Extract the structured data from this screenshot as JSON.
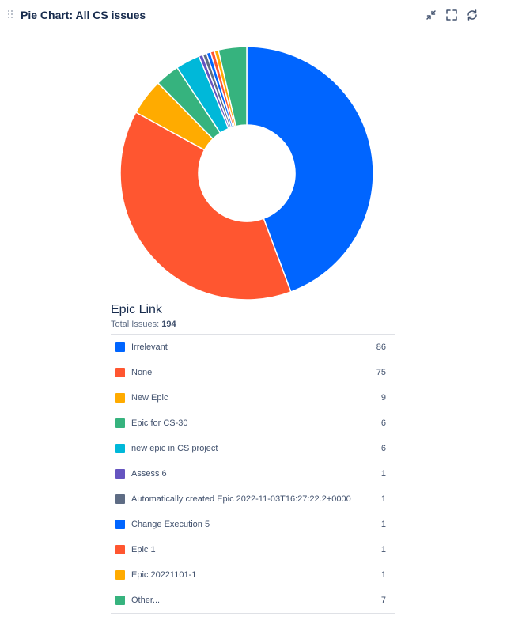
{
  "gadget": {
    "title": "Pie Chart: All CS issues",
    "icons": [
      "minimize-icon",
      "fullscreen-icon",
      "refresh-icon"
    ]
  },
  "chart_data": {
    "type": "pie",
    "style": "donut",
    "legend_title": "Epic Link",
    "total_label": "Total Issues:",
    "total": 194,
    "slices": [
      {
        "label": "Irrelevant",
        "value": 86,
        "color": "#0065ff"
      },
      {
        "label": "None",
        "value": 75,
        "color": "#ff5630"
      },
      {
        "label": "New Epic",
        "value": 9,
        "color": "#ffab00"
      },
      {
        "label": "Epic for CS-30",
        "value": 6,
        "color": "#36b37e"
      },
      {
        "label": "new epic in CS project",
        "value": 6,
        "color": "#00b8d9"
      },
      {
        "label": "Assess 6",
        "value": 1,
        "color": "#6554c0"
      },
      {
        "label": "Automatically created Epic 2022-11-03T16:27:22.2+0000",
        "value": 1,
        "color": "#5e6c84"
      },
      {
        "label": "Change Execution 5",
        "value": 1,
        "color": "#0065ff"
      },
      {
        "label": "Epic 1",
        "value": 1,
        "color": "#ff5630"
      },
      {
        "label": "Epic 20221101-1",
        "value": 1,
        "color": "#ffab00"
      },
      {
        "label": "Other...",
        "value": 7,
        "color": "#36b37e"
      }
    ]
  }
}
